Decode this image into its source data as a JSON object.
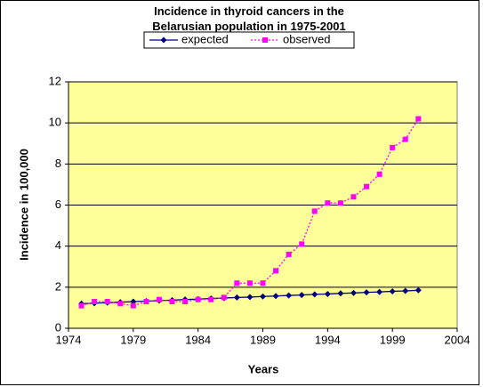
{
  "chart_data": {
    "type": "line",
    "title": "Incidence in thyroid cancers in the Belarusian population in 1975-2001",
    "x_label": "Years",
    "y_label": "Incidence in 100,000",
    "x": [
      1975,
      1976,
      1977,
      1978,
      1979,
      1980,
      1981,
      1982,
      1983,
      1984,
      1985,
      1986,
      1987,
      1988,
      1989,
      1990,
      1991,
      1992,
      1993,
      1994,
      1995,
      1996,
      1997,
      1998,
      1999,
      2000,
      2001
    ],
    "series": [
      {
        "name": "expected",
        "color": "#000080",
        "dash": false,
        "marker": "diamond",
        "values": [
          1.2,
          1.22,
          1.25,
          1.27,
          1.3,
          1.32,
          1.35,
          1.37,
          1.4,
          1.42,
          1.45,
          1.47,
          1.5,
          1.52,
          1.55,
          1.57,
          1.6,
          1.62,
          1.65,
          1.67,
          1.7,
          1.72,
          1.75,
          1.77,
          1.8,
          1.82,
          1.85
        ]
      },
      {
        "name": "observed",
        "color": "#ff00ff",
        "dash": true,
        "marker": "square",
        "values": [
          1.1,
          1.3,
          1.3,
          1.2,
          1.1,
          1.3,
          1.4,
          1.3,
          1.3,
          1.4,
          1.4,
          1.5,
          2.2,
          2.2,
          2.2,
          2.8,
          3.6,
          4.1,
          5.7,
          6.1,
          6.1,
          6.4,
          6.9,
          7.5,
          8.8,
          9.2,
          10.2
        ]
      }
    ],
    "xlim": [
      1974,
      2004
    ],
    "xticks": [
      1974,
      1979,
      1984,
      1989,
      1994,
      1999,
      2004
    ],
    "ylim": [
      0,
      12
    ],
    "yticks": [
      0,
      2,
      4,
      6,
      8,
      10,
      12
    ],
    "grid": true,
    "plot_background": "#ffff99",
    "legend": "top"
  }
}
